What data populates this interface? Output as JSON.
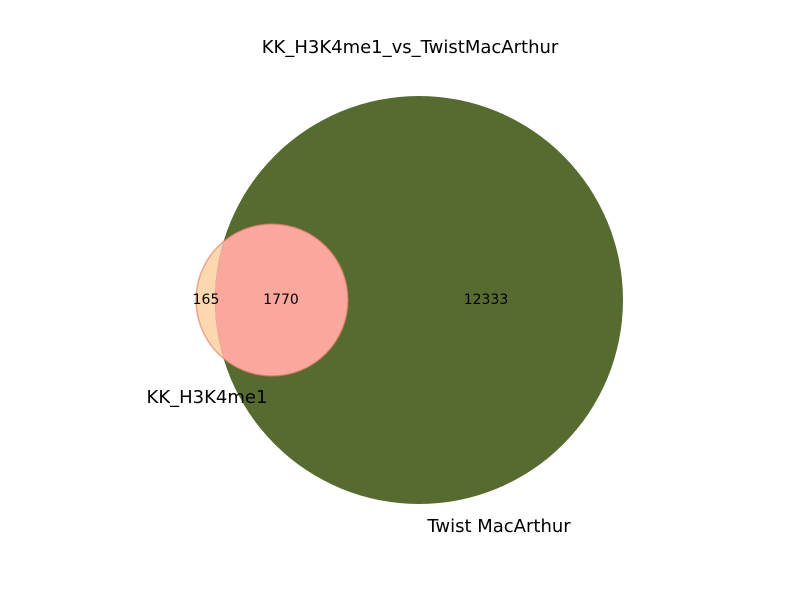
{
  "title": "KK_H3K4me1_vs_TwistMacArthur",
  "sets": [
    {
      "name": "KK_H3K4me1",
      "only_count": "165",
      "color": "#fdd7b0"
    },
    {
      "name": "Twist MacArthur",
      "only_count": "12333",
      "color": "#556b2f"
    }
  ],
  "intersection": {
    "count": "1770",
    "color": "#faa89d"
  }
}
